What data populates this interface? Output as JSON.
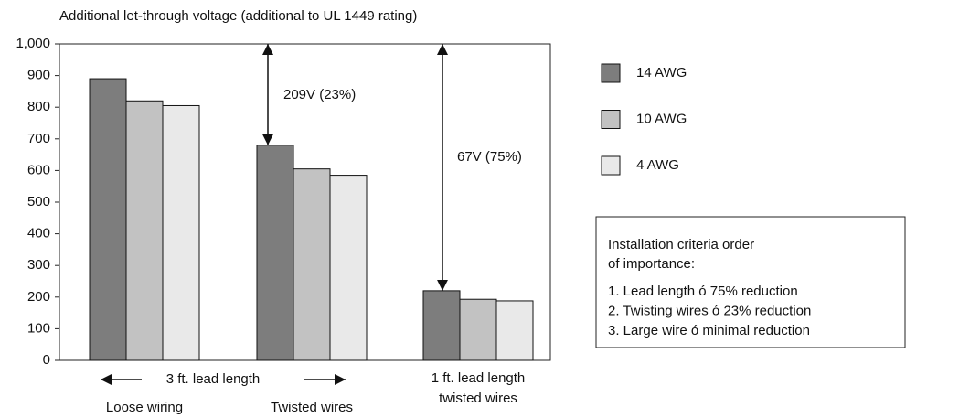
{
  "chart_data": {
    "type": "bar",
    "title": "Additional let-through voltage (additional to UL 1449 rating)",
    "categories": [
      "Loose wiring",
      "Twisted wires",
      "1 ft. lead length twisted wires"
    ],
    "series": [
      {
        "name": "14 AWG",
        "color": "#7d7d7d",
        "values": [
          890,
          680,
          220
        ]
      },
      {
        "name": "10 AWG",
        "color": "#c2c2c2",
        "values": [
          820,
          605,
          193
        ]
      },
      {
        "name": "4 AWG",
        "color": "#e9e9e9",
        "values": [
          805,
          585,
          188
        ]
      }
    ],
    "ylim": [
      0,
      1000
    ],
    "yticks": [
      0,
      100,
      200,
      300,
      400,
      500,
      600,
      700,
      800,
      900,
      {
        "value": 1000,
        "label": "1,000"
      }
    ],
    "legend": "right",
    "annotations": [
      "209V (23%)",
      "67V (75%)",
      "3 ft. lead length"
    ],
    "info_box": {
      "heading": [
        "Installation criteria order",
        "of importance:"
      ],
      "items": [
        "1. Lead length ó 75% reduction",
        "2. Twisting wires ó 23% reduction",
        "3. Large wire ó minimal reduction"
      ]
    }
  }
}
